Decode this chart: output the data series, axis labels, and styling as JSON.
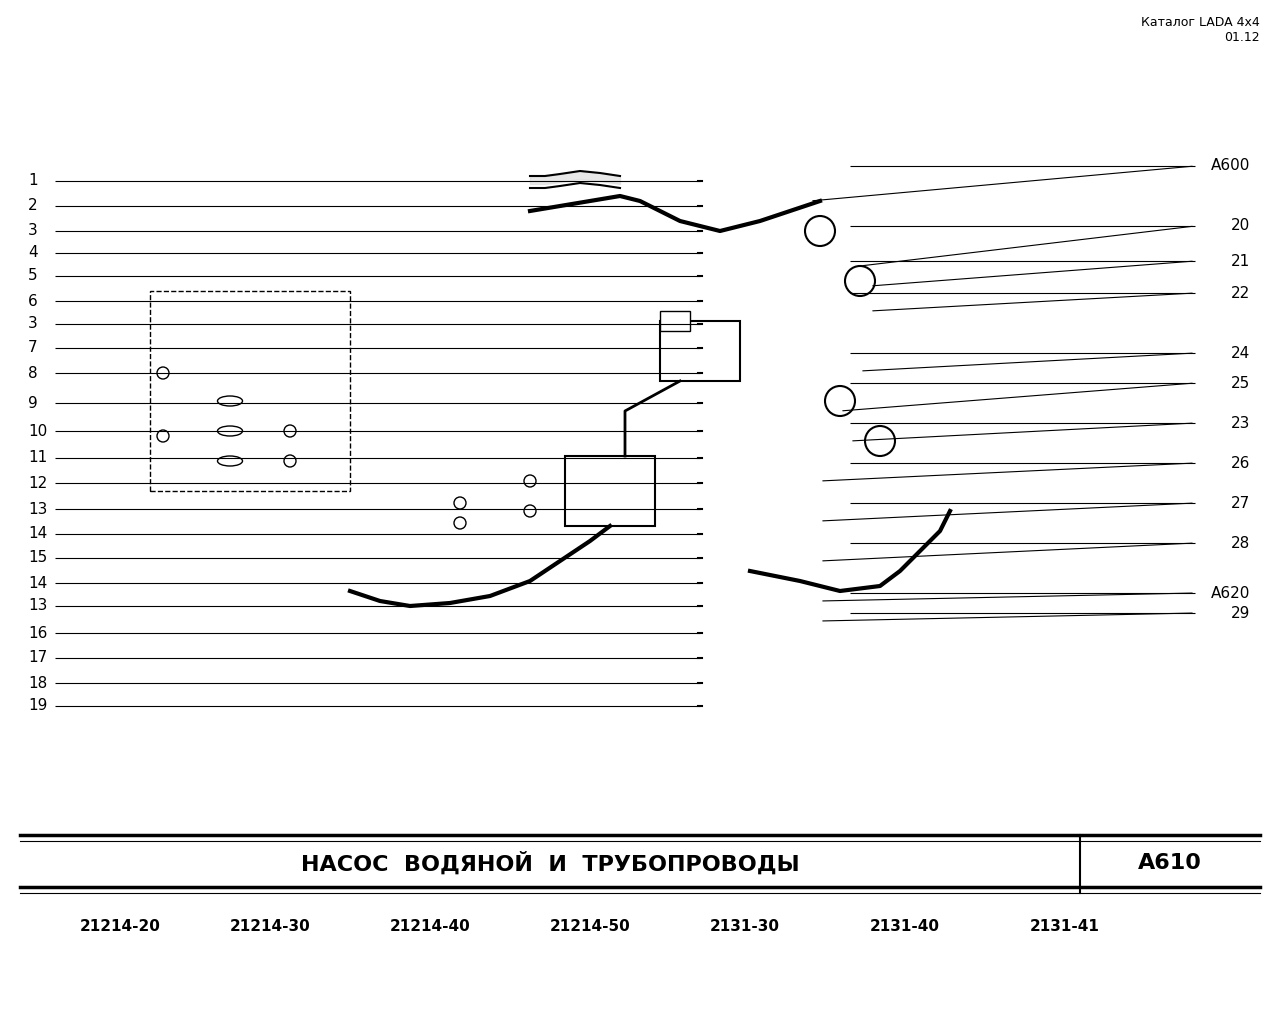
{
  "title_top_right": "Каталог LADA 4x4",
  "subtitle_top_right": "01.12",
  "left_labels": [
    "1",
    "2",
    "3",
    "4",
    "5",
    "6",
    "3",
    "7",
    "8",
    "9",
    "10",
    "11",
    "12",
    "13",
    "14",
    "15",
    "14",
    "13",
    "16",
    "17",
    "18",
    "19"
  ],
  "right_labels": [
    "A600",
    "20",
    "21",
    "22",
    "24",
    "25",
    "23",
    "26",
    "27",
    "28",
    "A620",
    "29"
  ],
  "bottom_title": "НАСОС  ВОДЯНОЙ  И  ТРУБОПРОВОДЫ",
  "bottom_code": "А610",
  "bottom_models": [
    "21214-20",
    "21214-30",
    "21214-40",
    "21214-50",
    "2131-30",
    "2131-40",
    "2131-41"
  ],
  "bg_color": "#ffffff",
  "line_color": "#000000",
  "text_color": "#000000"
}
